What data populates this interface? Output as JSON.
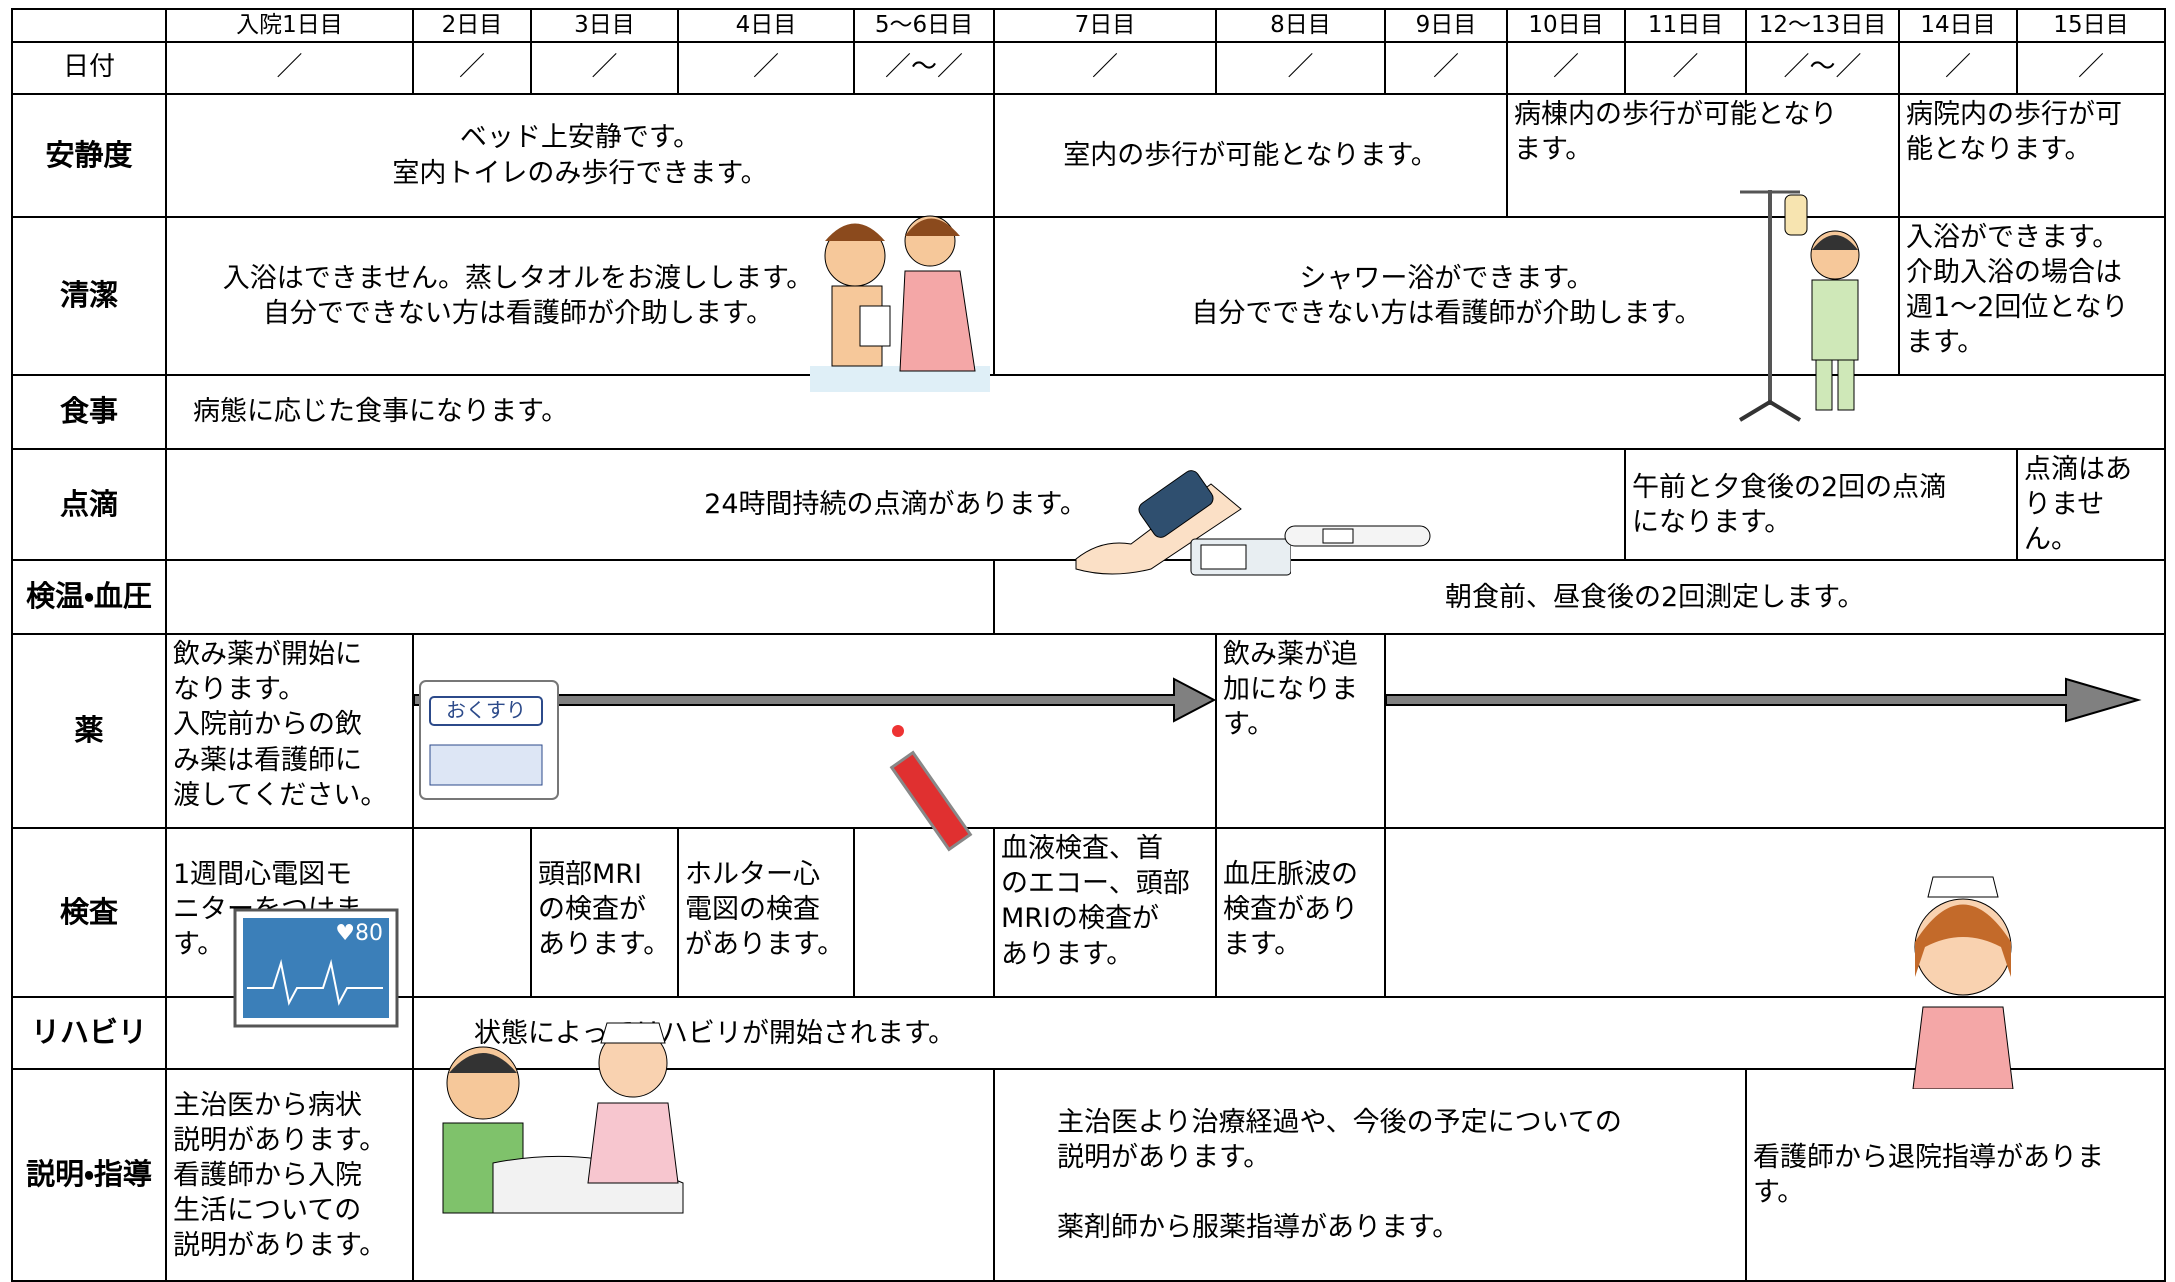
{
  "header": {
    "days": [
      "入院1日目",
      "2日目",
      "3日目",
      "4日目",
      "5～6日目",
      "7日目",
      "8日目",
      "9日目",
      "10日目",
      "11日目",
      "12～13日目",
      "14日目",
      "15日目"
    ]
  },
  "date_row": {
    "label": "日付",
    "cells": [
      "／",
      "／",
      "／",
      "／",
      "／～／",
      "／",
      "／",
      "／",
      "／",
      "／",
      "／～／",
      "／",
      "／"
    ]
  },
  "rows": [
    {
      "label": "安静度",
      "cells": [
        "ベッド上安静です。\n室内トイレのみ歩行できます。",
        "室内の歩行が可能となります。",
        "病棟内の歩行が可能となり\nます。",
        "病院内の歩行が可\n能となります。"
      ]
    },
    {
      "label": "清潔",
      "cells": [
        "入浴はできません。蒸しタオルをお渡しします。\n自分でできない方は看護師が介助します。",
        "シャワー浴ができます。\n自分でできない方は看護師が介助します。",
        "入浴ができます。\n介助入浴の場合は\n週1～2回位となり\nます。"
      ]
    },
    {
      "label": "食事",
      "cells": [
        "病態に応じた食事になります。"
      ]
    },
    {
      "label": "点滴",
      "cells": [
        "24時間持続の点滴があります。",
        "午前と夕食後の2回の点滴\nになります。",
        "点滴はあ\nりません。"
      ]
    },
    {
      "label": "検温・血圧",
      "cells": [
        "朝食前、昼食後の2回測定します。"
      ]
    },
    {
      "label": "薬",
      "cells": [
        "飲み薬が開始に\nなります。\n入院前からの飲\nみ薬は看護師に\n渡してください。",
        "飲み薬が追\n加になりま\nす。"
      ]
    },
    {
      "label": "検査",
      "cells": [
        "1週間心電図モ\nニターをつけま\nす。",
        "頭部MRI\nの検査が\nあります。",
        "ホルター心\n電図の検査\nがあります。",
        "血液検査、首\nのエコー、頭部\nMRIの検査が\nあります。",
        "血圧脈波の\n検査があり\nます。"
      ]
    },
    {
      "label": "リハビリ",
      "cells": [
        "状態によってリハビリが開始されます。"
      ]
    },
    {
      "label": "説明・指導",
      "cells": [
        "主治医から病状\n説明があります。\n看護師から入院\n生活についての\n説明があります。",
        "主治医より治療経過や、今後の予定についての\n説明があります。\n\n薬剤師から服薬指導があります。",
        "看護師から退院指導がありま\nす。"
      ]
    }
  ],
  "illustrations": {
    "medicine_bag": "おくすり",
    "monitor": "♥80"
  }
}
